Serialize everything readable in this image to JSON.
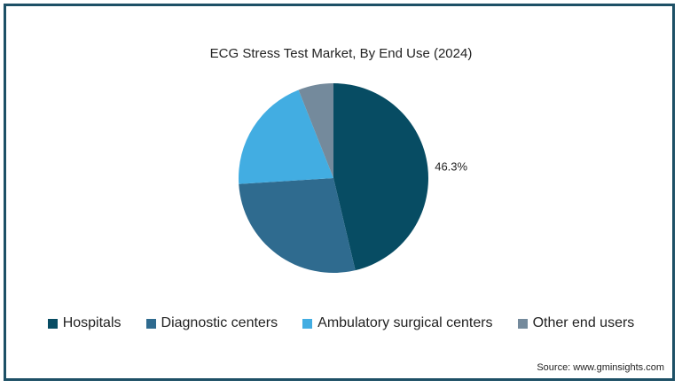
{
  "chart_data": {
    "type": "pie",
    "title": "ECG Stress Test Market, By End Use (2024)",
    "categories": [
      "Hospitals",
      "Diagnostic centers",
      "Ambulatory surgical centers",
      "Other end users"
    ],
    "values": [
      46.3,
      27.7,
      20.0,
      6.0
    ],
    "data_labels": [
      "46.3%",
      "",
      "",
      ""
    ],
    "colors": [
      "#074c63",
      "#2f6b8f",
      "#42ade2",
      "#748a9c"
    ],
    "legend_position": "bottom",
    "source": "Source: www.gminsights.com"
  }
}
